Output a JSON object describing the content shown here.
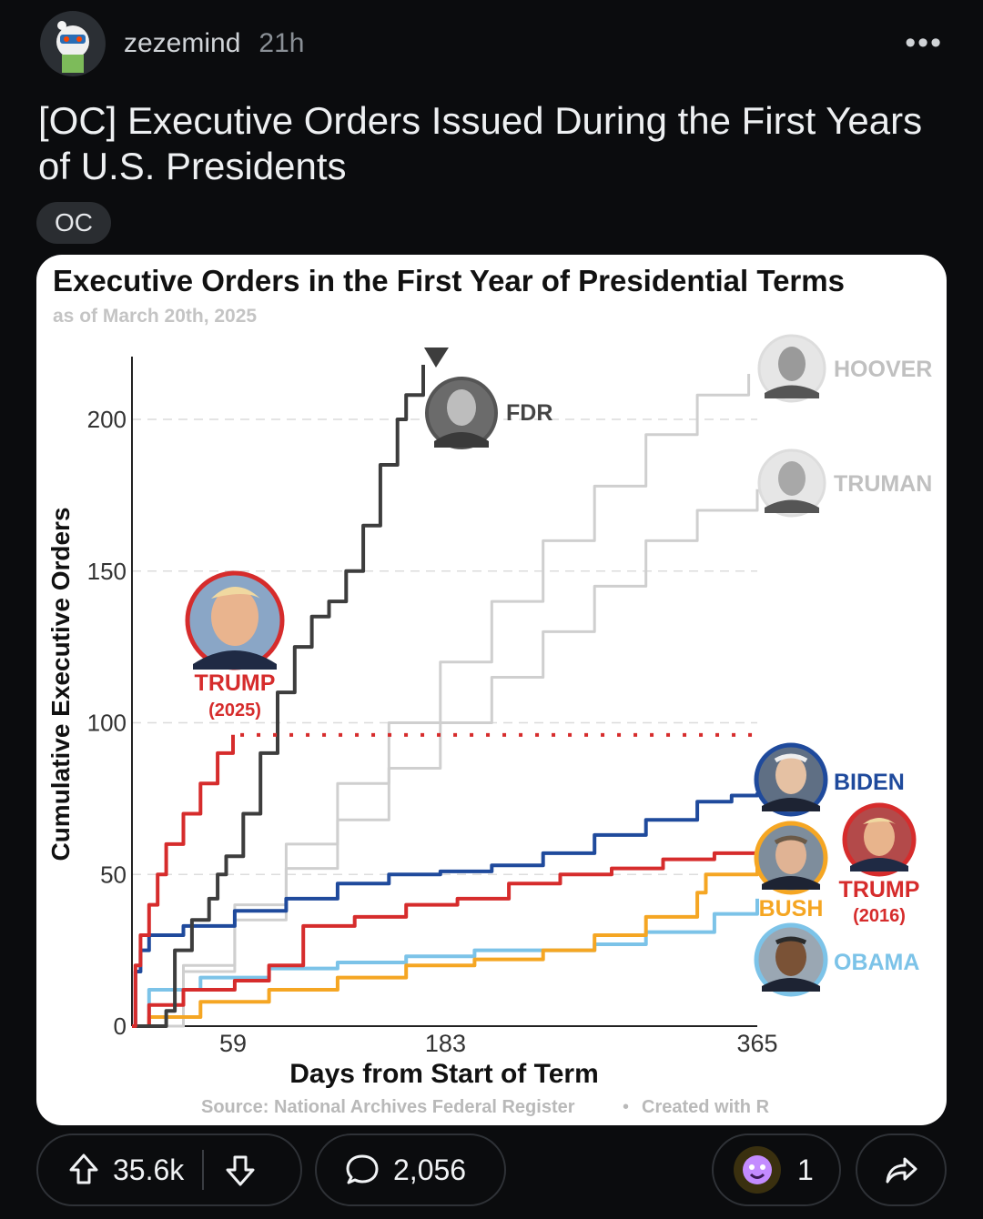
{
  "post": {
    "username": "zezemind",
    "time_ago": "21h",
    "more_icon": "more-options-icon",
    "title": "[OC] Executive Orders Issued During the First Years of U.S. Presidents",
    "flair": "OC"
  },
  "chart_data": {
    "type": "line",
    "title": "Executive Orders in the First Year of Presidential Terms",
    "subtitle": "as of March 20th, 2025",
    "xlabel": "Days from Start of Term",
    "ylabel": "Cumulative Executive Orders",
    "xticks": [
      "59",
      "183",
      "365"
    ],
    "yticks": [
      "0",
      "50",
      "100",
      "150",
      "200"
    ],
    "xlim": [
      0,
      365
    ],
    "ylim": [
      0,
      220
    ],
    "grid": true,
    "source": "Source: National Archives Federal Register",
    "separator": "•",
    "credit": "Created with R",
    "series": [
      {
        "name": "FDR",
        "color": "#3d3d3d",
        "points": [
          [
            0,
            0
          ],
          [
            20,
            5
          ],
          [
            25,
            25
          ],
          [
            35,
            35
          ],
          [
            45,
            42
          ],
          [
            50,
            50
          ],
          [
            55,
            56
          ],
          [
            65,
            70
          ],
          [
            75,
            90
          ],
          [
            85,
            110
          ],
          [
            95,
            125
          ],
          [
            105,
            135
          ],
          [
            115,
            140
          ],
          [
            125,
            150
          ],
          [
            135,
            165
          ],
          [
            145,
            185
          ],
          [
            155,
            200
          ],
          [
            160,
            208
          ],
          [
            170,
            218
          ]
        ]
      },
      {
        "name": "HOOVER",
        "color": "#cfcfcf",
        "points": [
          [
            0,
            0
          ],
          [
            30,
            20
          ],
          [
            60,
            40
          ],
          [
            90,
            60
          ],
          [
            120,
            80
          ],
          [
            150,
            100
          ],
          [
            180,
            120
          ],
          [
            210,
            140
          ],
          [
            240,
            160
          ],
          [
            270,
            178
          ],
          [
            300,
            195
          ],
          [
            330,
            208
          ],
          [
            360,
            215
          ]
        ]
      },
      {
        "name": "TRUMAN",
        "color": "#cfcfcf",
        "points": [
          [
            0,
            0
          ],
          [
            30,
            18
          ],
          [
            60,
            35
          ],
          [
            90,
            52
          ],
          [
            120,
            68
          ],
          [
            150,
            85
          ],
          [
            180,
            100
          ],
          [
            210,
            115
          ],
          [
            240,
            130
          ],
          [
            270,
            145
          ],
          [
            300,
            160
          ],
          [
            330,
            170
          ],
          [
            365,
            177
          ]
        ]
      },
      {
        "name": "BIDEN",
        "color": "#1f4a9c",
        "points": [
          [
            0,
            0
          ],
          [
            2,
            18
          ],
          [
            5,
            25
          ],
          [
            10,
            30
          ],
          [
            30,
            33
          ],
          [
            60,
            38
          ],
          [
            90,
            42
          ],
          [
            120,
            47
          ],
          [
            150,
            50
          ],
          [
            180,
            51
          ],
          [
            210,
            53
          ],
          [
            240,
            57
          ],
          [
            270,
            63
          ],
          [
            300,
            68
          ],
          [
            330,
            74
          ],
          [
            350,
            76
          ],
          [
            365,
            77
          ]
        ]
      },
      {
        "name": "TRUMP (2016)",
        "color": "#d62c2c",
        "points": [
          [
            0,
            0
          ],
          [
            10,
            7
          ],
          [
            30,
            12
          ],
          [
            60,
            15
          ],
          [
            80,
            20
          ],
          [
            100,
            33
          ],
          [
            130,
            36
          ],
          [
            160,
            40
          ],
          [
            190,
            42
          ],
          [
            220,
            47
          ],
          [
            250,
            50
          ],
          [
            280,
            52
          ],
          [
            310,
            55
          ],
          [
            340,
            57
          ],
          [
            365,
            58
          ]
        ]
      },
      {
        "name": "BUSH",
        "color": "#f5a623",
        "points": [
          [
            0,
            0
          ],
          [
            10,
            3
          ],
          [
            40,
            8
          ],
          [
            80,
            12
          ],
          [
            120,
            16
          ],
          [
            160,
            20
          ],
          [
            200,
            22
          ],
          [
            240,
            25
          ],
          [
            270,
            30
          ],
          [
            300,
            36
          ],
          [
            330,
            44
          ],
          [
            335,
            50
          ],
          [
            365,
            54
          ]
        ]
      },
      {
        "name": "OBAMA",
        "color": "#7cc3e8",
        "points": [
          [
            0,
            0
          ],
          [
            10,
            12
          ],
          [
            40,
            16
          ],
          [
            80,
            19
          ],
          [
            120,
            21
          ],
          [
            160,
            23
          ],
          [
            200,
            25
          ],
          [
            240,
            25
          ],
          [
            270,
            27
          ],
          [
            300,
            31
          ],
          [
            340,
            37
          ],
          [
            365,
            42
          ]
        ]
      },
      {
        "name": "TRUMP (2025)",
        "color": "#d62c2c",
        "points": [
          [
            0,
            0
          ],
          [
            2,
            20
          ],
          [
            5,
            30
          ],
          [
            10,
            40
          ],
          [
            15,
            50
          ],
          [
            20,
            60
          ],
          [
            30,
            70
          ],
          [
            40,
            80
          ],
          [
            50,
            90
          ],
          [
            59,
            96
          ]
        ]
      }
    ],
    "trump_2025_level": 96,
    "labels": {
      "fdr": "FDR",
      "hoover": "HOOVER",
      "truman": "TRUMAN",
      "trump_2025": "TRUMP",
      "trump_2025_year": "(2025)",
      "biden": "BIDEN",
      "trump_2016": "TRUMP",
      "trump_2016_year": "(2016)",
      "bush": "BUSH",
      "obama": "OBAMA"
    }
  },
  "actions": {
    "upvote_icon": "upvote-arrow-icon",
    "upvotes": "35.6k",
    "downvote_icon": "downvote-arrow-icon",
    "comment_icon": "comment-bubble-icon",
    "comments": "2,056",
    "award_icon": "award-icon",
    "awards": "1",
    "share_icon": "share-arrow-icon"
  }
}
